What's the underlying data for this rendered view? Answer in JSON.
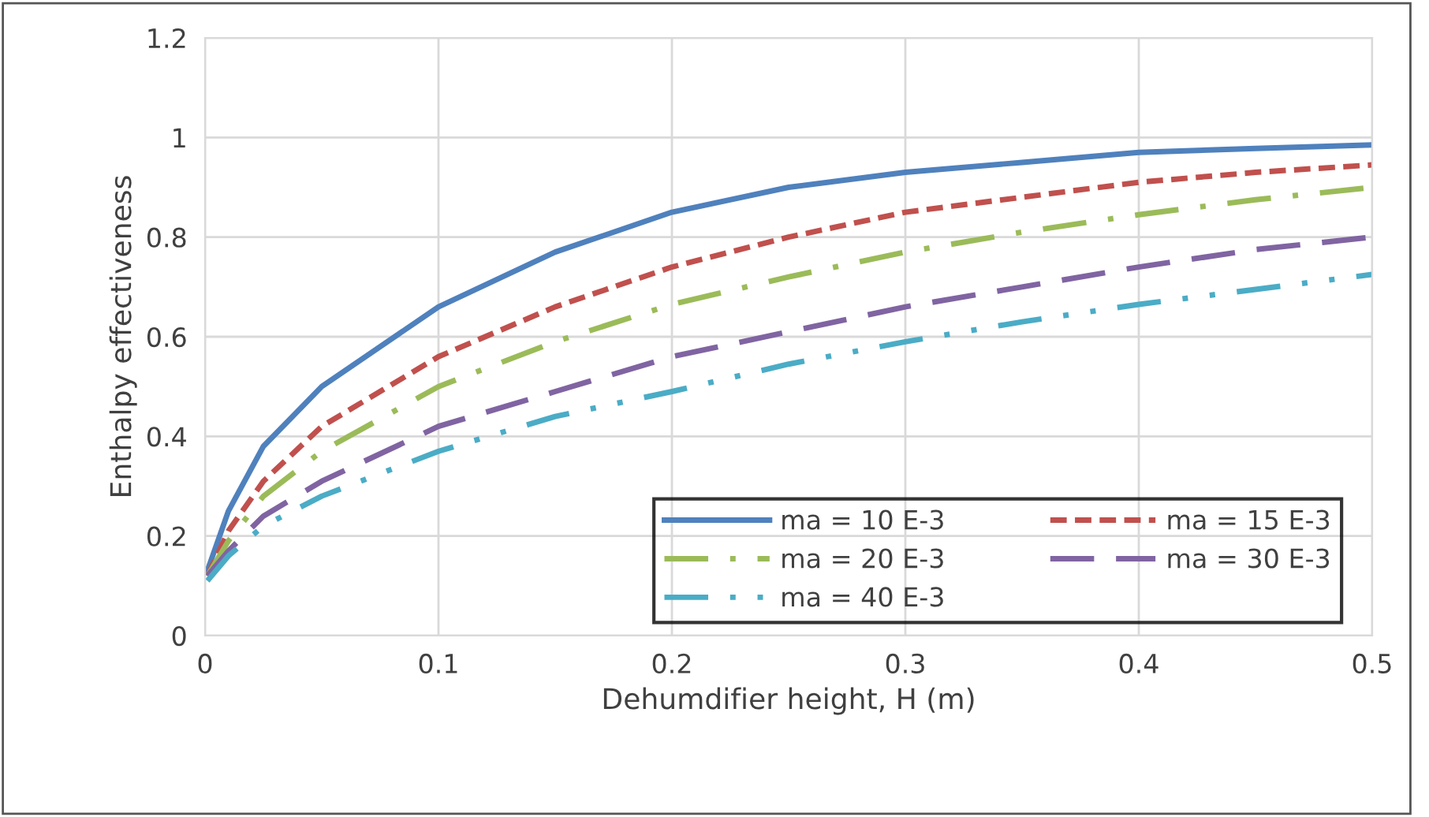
{
  "chart_data": {
    "type": "line",
    "xlabel": "Dehumdifier height, H (m)",
    "ylabel": "Enthalpy effectiveness",
    "x": [
      0.001,
      0.01,
      0.025,
      0.05,
      0.1,
      0.15,
      0.2,
      0.25,
      0.3,
      0.35,
      0.4,
      0.45,
      0.5
    ],
    "series": [
      {
        "name": "ma = 10 E-3",
        "color": "#4f81bd",
        "line_style": "solid",
        "values": [
          0.13,
          0.25,
          0.38,
          0.5,
          0.66,
          0.77,
          0.85,
          0.9,
          0.93,
          0.95,
          0.97,
          0.978,
          0.985
        ]
      },
      {
        "name": "ma = 15 E-3",
        "color": "#c0504d",
        "line_style": "dashed",
        "values": [
          0.12,
          0.21,
          0.31,
          0.42,
          0.56,
          0.66,
          0.74,
          0.8,
          0.85,
          0.88,
          0.91,
          0.93,
          0.945
        ]
      },
      {
        "name": "ma = 20 E-3",
        "color": "#9bbb59",
        "line_style": "dashdot",
        "values": [
          0.12,
          0.19,
          0.28,
          0.37,
          0.5,
          0.59,
          0.665,
          0.72,
          0.77,
          0.81,
          0.845,
          0.875,
          0.9
        ]
      },
      {
        "name": "ma = 30 E-3",
        "color": "#8064a2",
        "line_style": "longdash",
        "values": [
          0.12,
          0.17,
          0.24,
          0.31,
          0.42,
          0.49,
          0.56,
          0.61,
          0.66,
          0.7,
          0.74,
          0.775,
          0.8
        ]
      },
      {
        "name": "ma = 40 E-3",
        "color": "#4bacc6",
        "line_style": "dashdotdot",
        "values": [
          0.11,
          0.16,
          0.22,
          0.28,
          0.37,
          0.44,
          0.49,
          0.545,
          0.59,
          0.63,
          0.665,
          0.695,
          0.725
        ]
      }
    ],
    "xlim": [
      0,
      0.5
    ],
    "xticks": [
      {
        "value": 0,
        "label": "0"
      },
      0.1,
      0.2,
      0.3,
      0.4,
      0.5
    ],
    "ylim": [
      0,
      1.2
    ],
    "yticks": [
      {
        "value": 0,
        "label": "0"
      },
      0.2,
      0.4,
      0.6,
      0.8,
      {
        "value": 1,
        "label": "1"
      },
      1.2
    ],
    "grid": true,
    "legend": "bottom right",
    "marker": "none"
  }
}
